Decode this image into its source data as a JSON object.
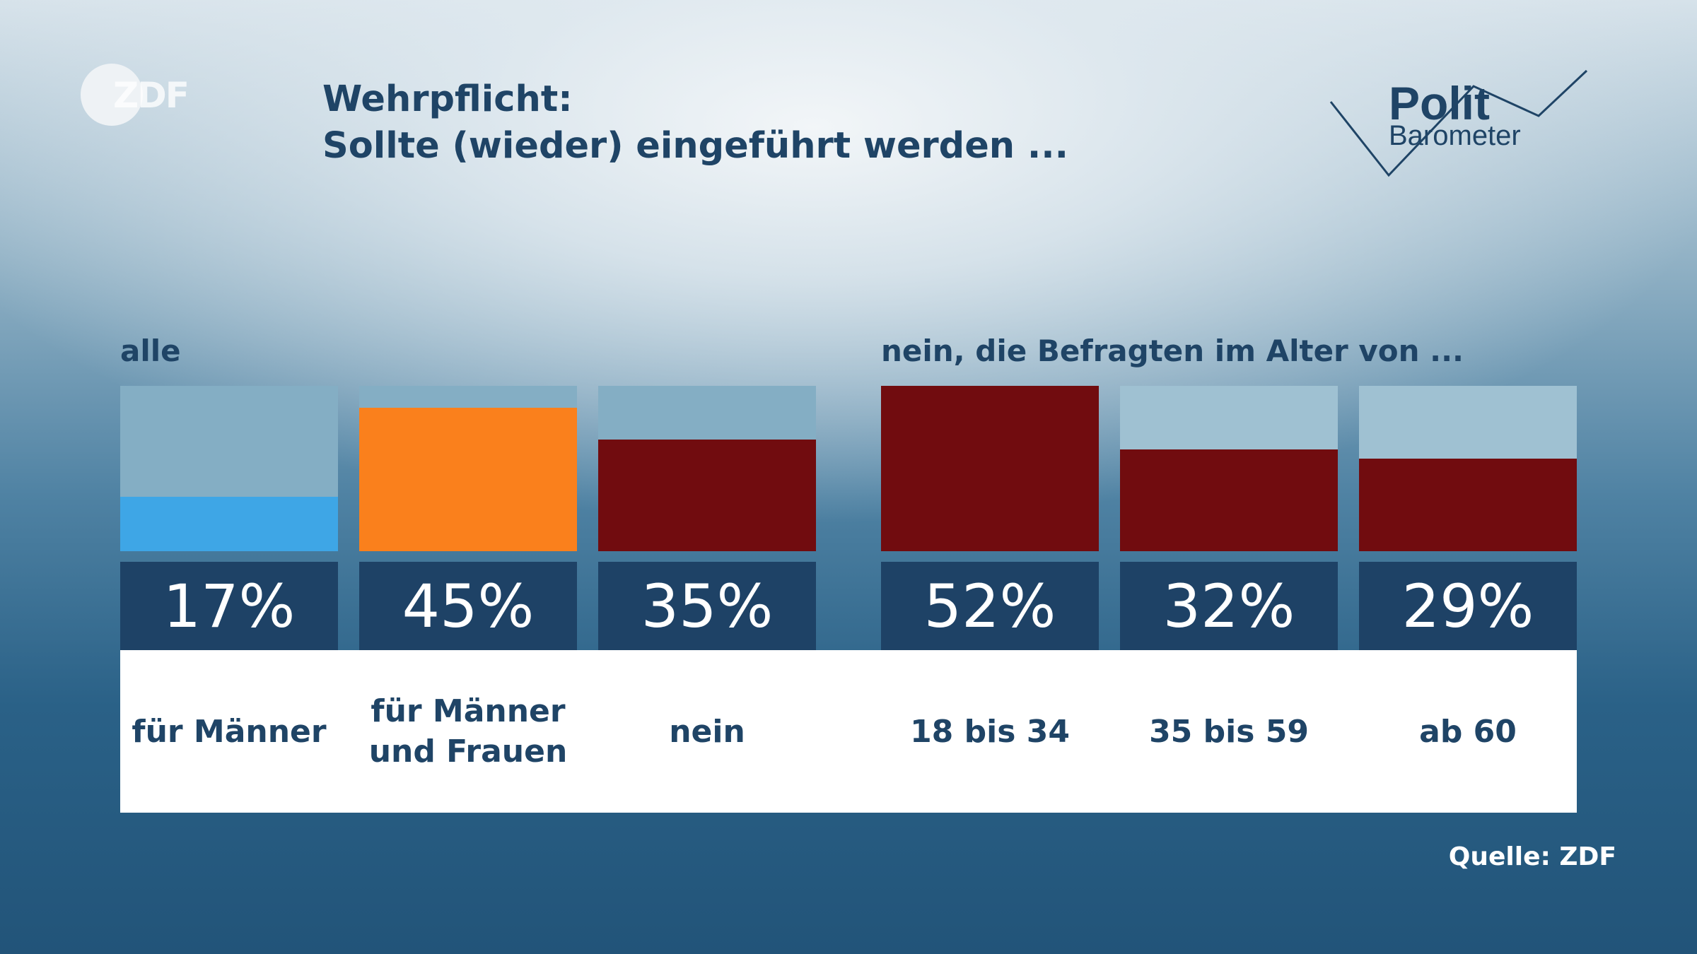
{
  "header": {
    "logo_text": "ZDF",
    "title_line1": "Wehrpflicht:",
    "title_line2": "Sollte (wieder) eingeführt werden ...",
    "brand_line1": "Polit",
    "brand_line2": "Barometer"
  },
  "source": "Quelle: ZDF",
  "colors": {
    "blue": "#3ea6e6",
    "orange": "#fa801c",
    "darkred": "#710c0f",
    "value_box": "#1e4266",
    "track_left": "#84aec4",
    "track_right": "#9fc1d2"
  },
  "chart_data": {
    "type": "bar",
    "title": "Wehrpflicht: Sollte (wieder) eingeführt werden ...",
    "unit": "%",
    "groups": [
      {
        "label": "alle",
        "categories": [
          "für Männer",
          "für Männer\nund Frauen",
          "nein"
        ],
        "values": [
          17,
          45,
          35
        ],
        "value_labels": [
          "17%",
          "45%",
          "35%"
        ],
        "colors": [
          "#3ea6e6",
          "#fa801c",
          "#710c0f"
        ]
      },
      {
        "label": "nein, die Befragten im Alter von ...",
        "categories": [
          "18 bis 34",
          "35 bis 59",
          "ab 60"
        ],
        "values": [
          52,
          32,
          29
        ],
        "value_labels": [
          "52%",
          "32%",
          "29%"
        ],
        "colors": [
          "#710c0f",
          "#710c0f",
          "#710c0f"
        ]
      }
    ]
  }
}
